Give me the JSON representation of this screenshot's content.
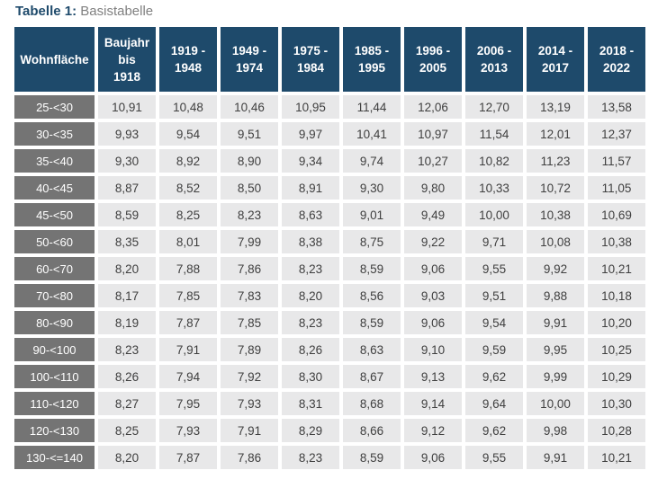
{
  "title": {
    "label": "Tabelle 1:",
    "subtitle": "Basistabelle"
  },
  "colors": {
    "header_bg": "#1e4a6b",
    "row_label_bg": "#747474",
    "cell_bg": "#e8e8e9",
    "cell_text": "#3f3f3f",
    "title_accent": "#1e4a6b",
    "title_sub": "#808080"
  },
  "table": {
    "corner_header": "Wohnfläche",
    "column_headers": [
      [
        "Baujahr",
        "bis",
        "1918"
      ],
      [
        "1919 -",
        "1948"
      ],
      [
        "1949 -",
        "1974"
      ],
      [
        "1975 -",
        "1984"
      ],
      [
        "1985 -",
        "1995"
      ],
      [
        "1996 -",
        "2005"
      ],
      [
        "2006 -",
        "2013"
      ],
      [
        "2014 -",
        "2017"
      ],
      [
        "2018 -",
        "2022"
      ]
    ],
    "rows": [
      {
        "label": "25-<30",
        "values": [
          "10,91",
          "10,48",
          "10,46",
          "10,95",
          "11,44",
          "12,06",
          "12,70",
          "13,19",
          "13,58"
        ]
      },
      {
        "label": "30-<35",
        "values": [
          "9,93",
          "9,54",
          "9,51",
          "9,97",
          "10,41",
          "10,97",
          "11,54",
          "12,01",
          "12,37"
        ]
      },
      {
        "label": "35-<40",
        "values": [
          "9,30",
          "8,92",
          "8,90",
          "9,34",
          "9,74",
          "10,27",
          "10,82",
          "11,23",
          "11,57"
        ]
      },
      {
        "label": "40-<45",
        "values": [
          "8,87",
          "8,52",
          "8,50",
          "8,91",
          "9,30",
          "9,80",
          "10,33",
          "10,72",
          "11,05"
        ]
      },
      {
        "label": "45-<50",
        "values": [
          "8,59",
          "8,25",
          "8,23",
          "8,63",
          "9,01",
          "9,49",
          "10,00",
          "10,38",
          "10,69"
        ]
      },
      {
        "label": "50-<60",
        "values": [
          "8,35",
          "8,01",
          "7,99",
          "8,38",
          "8,75",
          "9,22",
          "9,71",
          "10,08",
          "10,38"
        ]
      },
      {
        "label": "60-<70",
        "values": [
          "8,20",
          "7,88",
          "7,86",
          "8,23",
          "8,59",
          "9,06",
          "9,55",
          "9,92",
          "10,21"
        ]
      },
      {
        "label": "70-<80",
        "values": [
          "8,17",
          "7,85",
          "7,83",
          "8,20",
          "8,56",
          "9,03",
          "9,51",
          "9,88",
          "10,18"
        ]
      },
      {
        "label": "80-<90",
        "values": [
          "8,19",
          "7,87",
          "7,85",
          "8,23",
          "8,59",
          "9,06",
          "9,54",
          "9,91",
          "10,20"
        ]
      },
      {
        "label": "90-<100",
        "values": [
          "8,23",
          "7,91",
          "7,89",
          "8,26",
          "8,63",
          "9,10",
          "9,59",
          "9,95",
          "10,25"
        ]
      },
      {
        "label": "100-<110",
        "values": [
          "8,26",
          "7,94",
          "7,92",
          "8,30",
          "8,67",
          "9,13",
          "9,62",
          "9,99",
          "10,29"
        ]
      },
      {
        "label": "110-<120",
        "values": [
          "8,27",
          "7,95",
          "7,93",
          "8,31",
          "8,68",
          "9,14",
          "9,64",
          "10,00",
          "10,30"
        ]
      },
      {
        "label": "120-<130",
        "values": [
          "8,25",
          "7,93",
          "7,91",
          "8,29",
          "8,66",
          "9,12",
          "9,62",
          "9,98",
          "10,28"
        ]
      },
      {
        "label": "130-<=140",
        "values": [
          "8,20",
          "7,87",
          "7,86",
          "8,23",
          "8,59",
          "9,06",
          "9,55",
          "9,91",
          "10,21"
        ]
      }
    ]
  }
}
